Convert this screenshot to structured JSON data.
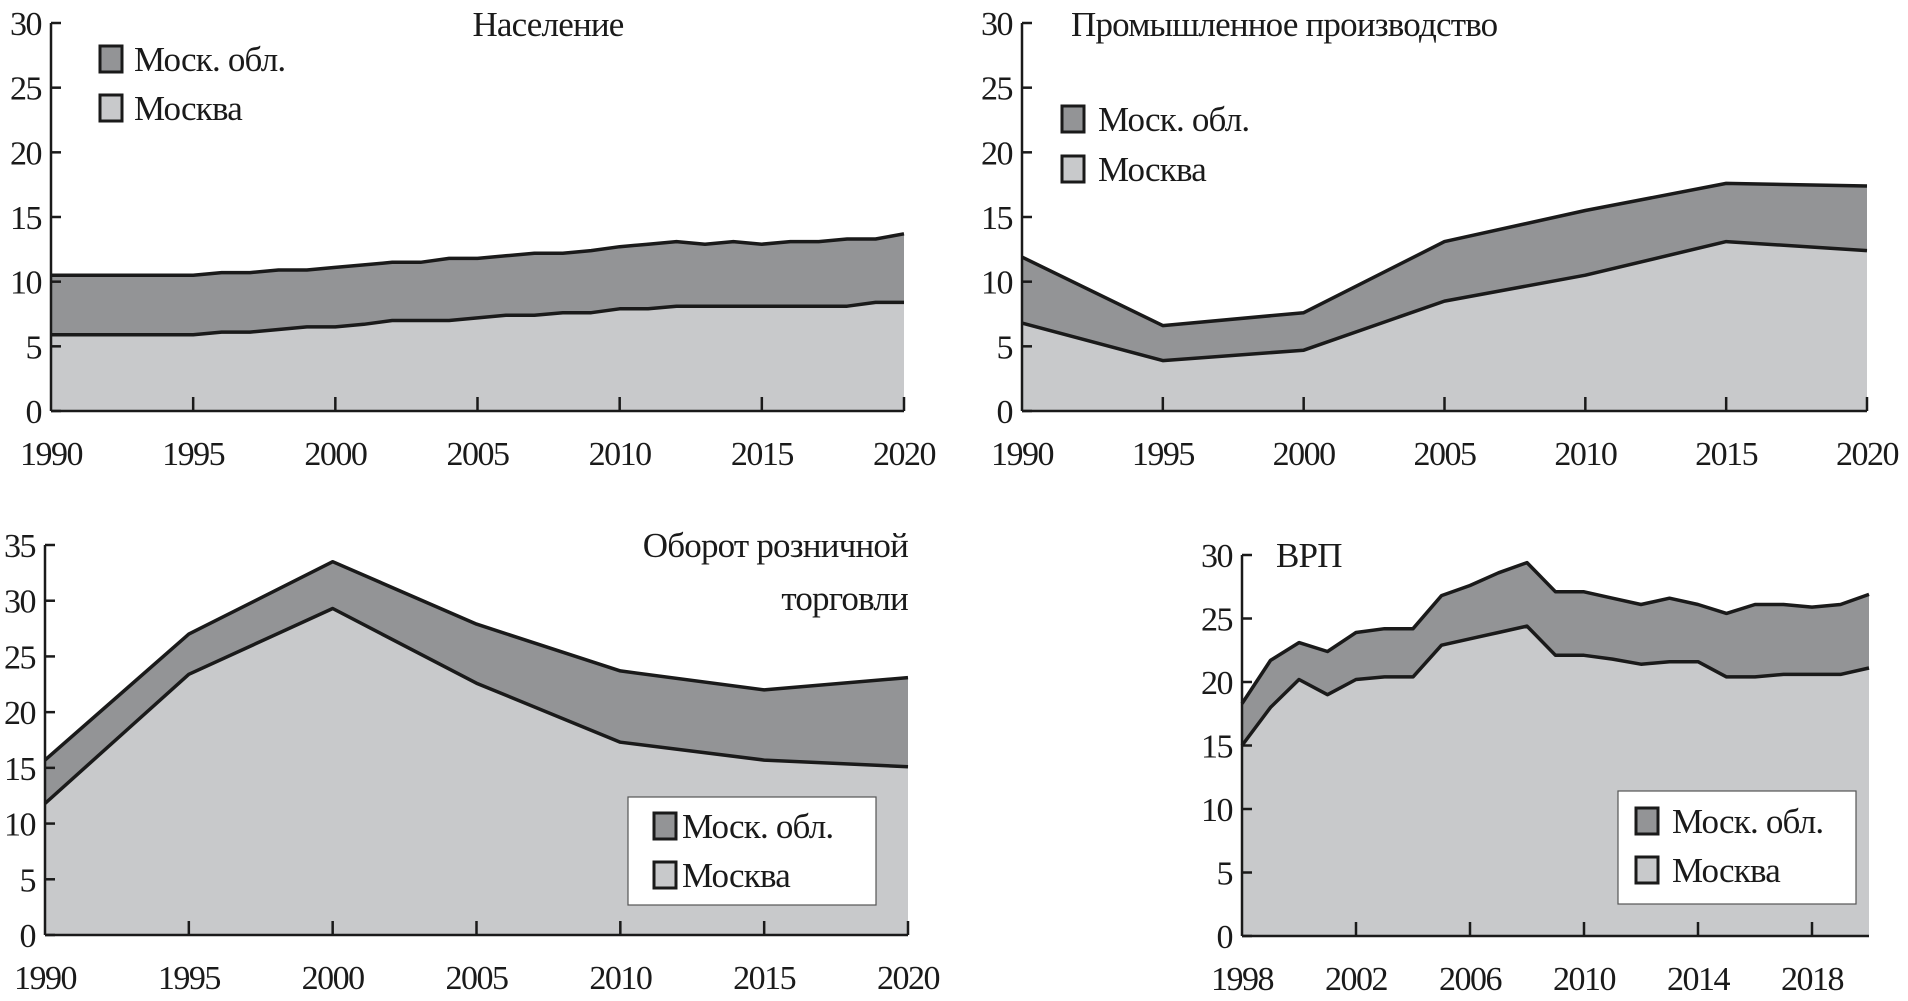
{
  "colors": {
    "moscow_region": "#939496",
    "moscow": "#c8c9cb",
    "line": "#1a1a1a",
    "legend_bg": "#ffffff"
  },
  "chart_data": [
    {
      "type": "area",
      "stacked": true,
      "title": "Население",
      "title_lines": [
        "Население"
      ],
      "x": [
        1990,
        1991,
        1992,
        1993,
        1994,
        1995,
        1996,
        1997,
        1998,
        1999,
        2000,
        2001,
        2002,
        2003,
        2004,
        2005,
        2006,
        2007,
        2008,
        2009,
        2010,
        2011,
        2012,
        2013,
        2014,
        2015,
        2016,
        2017,
        2018,
        2019,
        2020
      ],
      "xlim": [
        1990,
        2020
      ],
      "xticks": [
        1990,
        1995,
        2000,
        2005,
        2010,
        2015,
        2020
      ],
      "ylim": [
        0,
        30
      ],
      "yticks": [
        0,
        5,
        10,
        15,
        20,
        25,
        30
      ],
      "legend_position": "top-left",
      "series": [
        {
          "name": "Москва",
          "values": [
            5.9,
            5.9,
            5.9,
            5.9,
            5.9,
            5.9,
            6.1,
            6.1,
            6.3,
            6.5,
            6.5,
            6.7,
            7.0,
            7.0,
            7.0,
            7.2,
            7.4,
            7.4,
            7.6,
            7.6,
            7.9,
            7.9,
            8.1,
            8.1,
            8.1,
            8.1,
            8.1,
            8.1,
            8.1,
            8.4,
            8.4
          ]
        },
        {
          "name": "Моск. обл.",
          "values": [
            4.6,
            4.6,
            4.6,
            4.6,
            4.6,
            4.6,
            4.6,
            4.6,
            4.6,
            4.4,
            4.6,
            4.6,
            4.5,
            4.5,
            4.8,
            4.6,
            4.6,
            4.8,
            4.6,
            4.8,
            4.8,
            5.0,
            5.0,
            4.8,
            5.0,
            4.8,
            5.0,
            5.0,
            5.2,
            4.9,
            5.3
          ]
        }
      ]
    },
    {
      "type": "area",
      "stacked": true,
      "title": "Промышленное производство",
      "title_lines": [
        "Промышленное производство"
      ],
      "x": [
        1990,
        1995,
        2000,
        2005,
        2010,
        2015,
        2020
      ],
      "xlim": [
        1990,
        2020
      ],
      "xticks": [
        1990,
        1995,
        2000,
        2005,
        2010,
        2015,
        2020
      ],
      "ylim": [
        0,
        30
      ],
      "yticks": [
        0,
        5,
        10,
        15,
        20,
        25,
        30
      ],
      "legend_position": "upper-left",
      "series": [
        {
          "name": "Москва",
          "values": [
            6.8,
            3.9,
            4.7,
            8.5,
            10.5,
            13.1,
            12.4
          ]
        },
        {
          "name": "Моск. обл.",
          "values": [
            5.1,
            2.7,
            2.9,
            4.6,
            5.0,
            4.5,
            5.0
          ]
        }
      ]
    },
    {
      "type": "area",
      "stacked": true,
      "title": "Оборот розничной торговли",
      "title_lines": [
        "Оборот розничной",
        "торговли"
      ],
      "x": [
        1990,
        1995,
        2000,
        2005,
        2010,
        2015,
        2020
      ],
      "xlim": [
        1990,
        2020
      ],
      "xticks": [
        1990,
        1995,
        2000,
        2005,
        2010,
        2015,
        2020
      ],
      "ylim": [
        0,
        35
      ],
      "yticks": [
        0,
        5,
        10,
        15,
        20,
        25,
        30,
        35
      ],
      "legend_position": "bottom-right",
      "series": [
        {
          "name": "Москва",
          "values": [
            11.8,
            23.4,
            29.3,
            22.6,
            17.3,
            15.7,
            15.1
          ]
        },
        {
          "name": "Моск. обл.",
          "values": [
            3.9,
            3.6,
            4.2,
            5.3,
            6.4,
            6.3,
            8.0
          ]
        }
      ]
    },
    {
      "type": "area",
      "stacked": true,
      "title": "ВРП",
      "title_lines": [
        "ВРП"
      ],
      "x": [
        1998,
        1999,
        2000,
        2001,
        2002,
        2003,
        2004,
        2005,
        2006,
        2007,
        2008,
        2009,
        2010,
        2011,
        2012,
        2013,
        2014,
        2015,
        2016,
        2017,
        2018,
        2019,
        2020
      ],
      "xlim": [
        1998,
        2020
      ],
      "xticks": [
        1998,
        2002,
        2006,
        2010,
        2014,
        2018
      ],
      "ylim": [
        0,
        30
      ],
      "yticks": [
        0,
        5,
        10,
        15,
        20,
        25,
        30
      ],
      "legend_position": "bottom-right",
      "series": [
        {
          "name": "Москва",
          "values": [
            15.0,
            18.0,
            20.2,
            19.0,
            20.2,
            20.4,
            20.4,
            22.9,
            23.4,
            23.9,
            24.4,
            22.1,
            22.1,
            21.8,
            21.4,
            21.6,
            21.6,
            20.4,
            20.4,
            20.6,
            20.6,
            20.6,
            21.1
          ]
        },
        {
          "name": "Моск. обл.",
          "values": [
            3.3,
            3.7,
            2.9,
            3.4,
            3.7,
            3.8,
            3.8,
            3.9,
            4.2,
            4.7,
            5.0,
            5.0,
            5.0,
            4.8,
            4.7,
            5.0,
            4.5,
            5.0,
            5.7,
            5.5,
            5.3,
            5.5,
            5.8
          ]
        }
      ]
    }
  ]
}
